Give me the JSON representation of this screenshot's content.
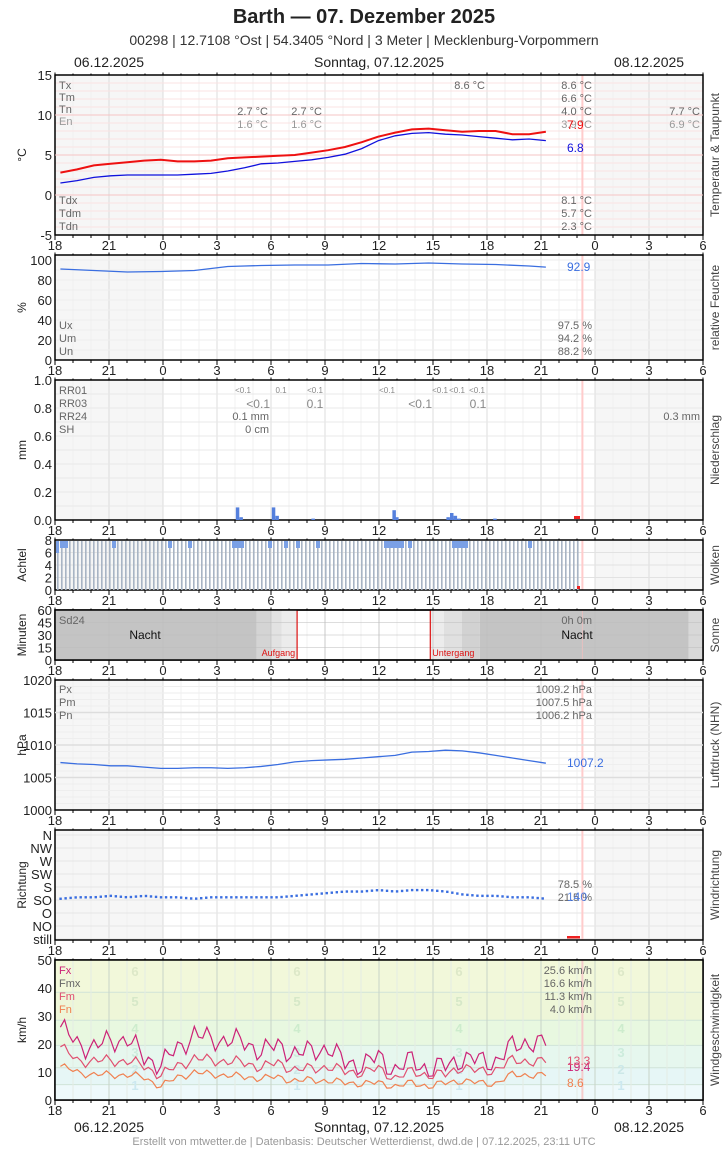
{
  "header": {
    "title": "Barth  —  07. Dezember 2025",
    "subtitle": "00298  |  12.7108 °Ost  |  54.3405 °Nord  |  3 Meter  |  Mecklenburg-Vorpommern",
    "date_left": "06.12.2025",
    "date_center": "Sonntag, 07.12.2025",
    "date_right": "08.12.2025"
  },
  "footer": {
    "credit": "Erstellt von mtwetter.de | Datenbasis: Deutscher Wetterdienst, dwd.de | 07.12.2025, 23:11 UTC"
  },
  "x_axis": {
    "tick_labels": [
      "18",
      "21",
      "0",
      "3",
      "6",
      "9",
      "12",
      "15",
      "18",
      "21",
      "0",
      "3",
      "6"
    ]
  },
  "colors": {
    "temperature": "#ee1111",
    "dewpoint": "#1111dd",
    "series_blue": "#3a6ee0",
    "wind_fx": "#cc2277",
    "wind_fm": "#e05070",
    "wind_fn": "#f08050",
    "sunrise": "#dd1111",
    "now_line": "#ffcccc"
  },
  "chart_data": [
    {
      "type": "line",
      "title": "Temperatur & Taupunkt",
      "ylabel": "°C",
      "ylim": [
        -5,
        15
      ],
      "yticks": [
        "15",
        "10",
        "5",
        "0",
        "-5"
      ],
      "legend_top": [
        "Tx",
        "Tm",
        "Tn",
        "En"
      ],
      "legend_bottom": [
        "Tdx",
        "Tdm",
        "Tdn"
      ],
      "annotations": {
        "day1_tn": "2.7 °C",
        "day1_en": "1.6 °C",
        "day1b_tn": "2.7 °C",
        "day1b_en": "1.6 °C",
        "day_max_mark": "8.6 °C",
        "tx": "8.6 °C",
        "tm": "6.6 °C",
        "tn": "4.0 °C",
        "en": "3.9 °C",
        "next_tn": "7.7 °C",
        "next_en": "6.9 °C",
        "tdx": "8.1 °C",
        "tdm": "5.7 °C",
        "tdn": "2.3 °C",
        "temp_current": "7.9",
        "dew_current": "6.8"
      },
      "series": [
        {
          "name": "Temperatur",
          "x_hours": [
            0,
            1,
            2,
            3,
            4,
            5,
            6,
            7,
            8,
            9,
            10,
            11,
            12,
            13,
            14,
            15,
            16,
            17,
            18,
            19,
            20,
            21,
            22,
            23,
            24,
            25,
            26,
            27,
            28,
            29
          ],
          "values": [
            2.8,
            3.2,
            3.7,
            3.9,
            4.1,
            4.3,
            4.4,
            4.2,
            4.2,
            4.3,
            4.6,
            4.7,
            4.8,
            4.9,
            5.0,
            5.3,
            5.6,
            6.0,
            6.6,
            7.3,
            7.8,
            8.2,
            8.3,
            8.1,
            7.9,
            8.0,
            8.0,
            7.6,
            7.6,
            7.9
          ]
        },
        {
          "name": "Taupunkt",
          "x_hours": [
            0,
            1,
            2,
            3,
            4,
            5,
            6,
            7,
            8,
            9,
            10,
            11,
            12,
            13,
            14,
            15,
            16,
            17,
            18,
            19,
            20,
            21,
            22,
            23,
            24,
            25,
            26,
            27,
            28,
            29
          ],
          "values": [
            1.5,
            1.8,
            2.2,
            2.4,
            2.5,
            2.5,
            2.5,
            2.5,
            2.6,
            2.7,
            3.0,
            3.4,
            3.9,
            4.0,
            4.2,
            4.4,
            4.7,
            5.1,
            5.8,
            6.8,
            7.4,
            7.7,
            7.8,
            7.6,
            7.5,
            7.3,
            7.1,
            6.9,
            7.0,
            6.8
          ]
        }
      ]
    },
    {
      "type": "line",
      "title": "relative Feuchte",
      "ylabel": "%",
      "ylim": [
        0,
        100
      ],
      "yticks": [
        "100",
        "80",
        "60",
        "40",
        "20",
        "0"
      ],
      "legend": [
        "Ux",
        "Um",
        "Un"
      ],
      "annotations": {
        "ux": "97.5 %",
        "um": "94.2 %",
        "un": "88.2 %",
        "current": "92.9"
      },
      "series": [
        {
          "name": "Feuchte",
          "x_hours": [
            0,
            2,
            4,
            6,
            8,
            10,
            11,
            12,
            14,
            16,
            18,
            20,
            22,
            24,
            26,
            28,
            29
          ],
          "values": [
            91,
            89.5,
            88,
            88.5,
            89.5,
            93.5,
            94,
            94.5,
            95,
            95,
            96.5,
            96,
            97,
            96,
            95.5,
            94,
            92.9
          ]
        }
      ]
    },
    {
      "type": "bar",
      "title": "Niederschlag",
      "ylabel": "mm",
      "ylim": [
        0,
        1.0
      ],
      "yticks": [
        "1.0",
        "0.8",
        "0.6",
        "0.4",
        "0.2",
        "0.0"
      ],
      "legend": [
        "RR01",
        "RR03",
        "RR24",
        "SH"
      ],
      "annotations": {
        "rr01": [
          "<0.1",
          "0.1",
          "<0.1",
          "<0.1",
          "<0.1",
          "<0.1",
          "<0.1"
        ],
        "rr03": [
          "<0.1",
          "0.1",
          "<0.1",
          "0.1"
        ],
        "rr24": "0.1 mm",
        "sh": "0 cm",
        "next_rr24": "0.3 mm"
      },
      "bars": [
        {
          "hour": 10.1,
          "value": 0.09
        },
        {
          "hour": 10.3,
          "value": 0.02
        },
        {
          "hour": 12.1,
          "value": 0.09
        },
        {
          "hour": 12.3,
          "value": 0.03
        },
        {
          "hour": 14.3,
          "value": 0.01
        },
        {
          "hour": 18.8,
          "value": 0.07
        },
        {
          "hour": 18.95,
          "value": 0.02
        },
        {
          "hour": 21.8,
          "value": 0.02
        },
        {
          "hour": 22.0,
          "value": 0.05
        },
        {
          "hour": 22.2,
          "value": 0.03
        },
        {
          "hour": 22.4,
          "value": 0.01
        },
        {
          "hour": 24.4,
          "value": 0.01
        }
      ]
    },
    {
      "type": "bar",
      "title": "Wolken",
      "ylabel": "Achtel",
      "ylim": [
        0,
        8
      ],
      "yticks": [
        "8",
        "6",
        "4",
        "2",
        "0"
      ],
      "note": "Near-continuous overcast 8/8 with light grey/blue stripes; short gaps 7/8 at several times"
    },
    {
      "type": "area",
      "title": "Sonne",
      "ylabel": "Minuten",
      "ylim": [
        0,
        60
      ],
      "yticks": [
        "60",
        "45",
        "30",
        "15",
        "0"
      ],
      "annotations": {
        "sd24": "Sd24",
        "night_left": "Nacht",
        "night_right": "Nacht",
        "sunrise": "Aufgang",
        "sunset": "Untergang",
        "sunshine_total": "0h 0m"
      },
      "sunrise_hour": 13.45,
      "sunset_hour": 20.85
    },
    {
      "type": "line",
      "title": "Luftdruck (NHN)",
      "ylabel": "hPa",
      "ylim": [
        1000,
        1020
      ],
      "yticks": [
        "1020",
        "1015",
        "1010",
        "1005",
        "1000"
      ],
      "legend": [
        "Px",
        "Pm",
        "Pn"
      ],
      "annotations": {
        "px": "1009.2 hPa",
        "pm": "1007.5 hPa",
        "pn": "1006.2 hPa",
        "current": "1007.2"
      },
      "series": [
        {
          "name": "Luftdruck",
          "x_hours": [
            0,
            1,
            2,
            3,
            4,
            5,
            6,
            7,
            8,
            9,
            10,
            11,
            12,
            13,
            14,
            15,
            16,
            17,
            18,
            19,
            20,
            21,
            22,
            23,
            24,
            25,
            26,
            27,
            28,
            29
          ],
          "values": [
            1007.3,
            1007.1,
            1007.0,
            1006.8,
            1006.8,
            1006.6,
            1006.4,
            1006.4,
            1006.5,
            1006.5,
            1006.4,
            1006.5,
            1006.7,
            1007.0,
            1007.4,
            1007.6,
            1007.7,
            1007.8,
            1008.0,
            1008.2,
            1008.4,
            1008.9,
            1009.0,
            1009.2,
            1009.1,
            1008.8,
            1008.4,
            1008.0,
            1007.6,
            1007.2
          ]
        }
      ]
    },
    {
      "type": "scatter",
      "title": "Windrichtung",
      "ylabel": "Richtung",
      "categories": [
        "N",
        "NW",
        "W",
        "SW",
        "S",
        "SO",
        "O",
        "NO",
        "still"
      ],
      "annotations": {
        "pct_1": "78.5 %",
        "pct_2": "21.5 %",
        "current": "140"
      },
      "series": [
        {
          "name": "Richtung (°)",
          "x_hours": [
            0,
            1,
            2,
            3,
            4,
            5,
            6,
            7,
            8,
            9,
            10,
            11,
            12,
            13,
            14,
            15,
            16,
            17,
            18,
            19,
            20,
            21,
            22,
            23,
            24,
            25,
            26,
            27,
            28,
            29
          ],
          "values": [
            140,
            145,
            145,
            150,
            145,
            150,
            145,
            145,
            140,
            145,
            145,
            145,
            145,
            145,
            150,
            155,
            160,
            165,
            165,
            170,
            165,
            170,
            170,
            165,
            155,
            150,
            150,
            145,
            145,
            140
          ]
        }
      ]
    },
    {
      "type": "line",
      "title": "Windgeschwindigkeit",
      "ylabel": "km/h",
      "ylim": [
        0,
        50
      ],
      "yticks": [
        "50",
        "40",
        "30",
        "20",
        "10",
        "0"
      ],
      "legend": [
        "Fx",
        "Fmx",
        "Fm",
        "Fn"
      ],
      "beaufort_labels": [
        "6",
        "5",
        "4",
        "3",
        "2",
        "1"
      ],
      "annotations": {
        "fx": "25.6 km/h",
        "fmx": "16.6 km/h",
        "fm": "11.3 km/h",
        "fn": "4.0 km/h",
        "fx_current": "19.4",
        "fm_current": "13.3",
        "fn_current": "8.6"
      },
      "series": [
        {
          "name": "Fx",
          "x_hours": [
            0,
            1,
            2,
            3,
            4,
            5,
            6,
            7,
            8,
            9,
            10,
            11,
            12,
            13,
            14,
            15,
            16,
            17,
            18,
            19,
            20,
            21,
            22,
            23,
            24,
            25,
            26,
            27,
            28,
            29
          ],
          "values": [
            26,
            20,
            19,
            21,
            22,
            15,
            13,
            18,
            24,
            21,
            22,
            20,
            18,
            19,
            17,
            17,
            19,
            13,
            13,
            15,
            11,
            14,
            11,
            12,
            15,
            14,
            14,
            19,
            21,
            19.4
          ]
        },
        {
          "name": "Fm",
          "x_hours": [
            0,
            1,
            2,
            3,
            4,
            5,
            6,
            7,
            8,
            9,
            10,
            11,
            12,
            13,
            14,
            15,
            16,
            17,
            18,
            19,
            20,
            21,
            22,
            23,
            24,
            25,
            26,
            27,
            28,
            29
          ],
          "values": [
            19,
            14,
            14,
            14,
            14,
            12,
            9,
            12,
            15,
            14,
            14,
            13,
            12,
            13,
            11,
            11,
            12,
            10,
            10,
            11,
            8,
            10,
            9,
            9,
            12,
            10,
            11,
            14,
            14,
            13.3
          ]
        },
        {
          "name": "Fn",
          "x_hours": [
            0,
            1,
            2,
            3,
            4,
            5,
            6,
            7,
            8,
            9,
            10,
            11,
            12,
            13,
            14,
            15,
            16,
            17,
            18,
            19,
            20,
            21,
            22,
            23,
            24,
            25,
            26,
            27,
            28,
            29
          ],
          "values": [
            12,
            10,
            9,
            9,
            9,
            8,
            5,
            8,
            10,
            9,
            9,
            8,
            8,
            8,
            7,
            7,
            7,
            6,
            6,
            6,
            5,
            6,
            5,
            6,
            7,
            6,
            6,
            9,
            9,
            8.6
          ]
        }
      ]
    }
  ]
}
